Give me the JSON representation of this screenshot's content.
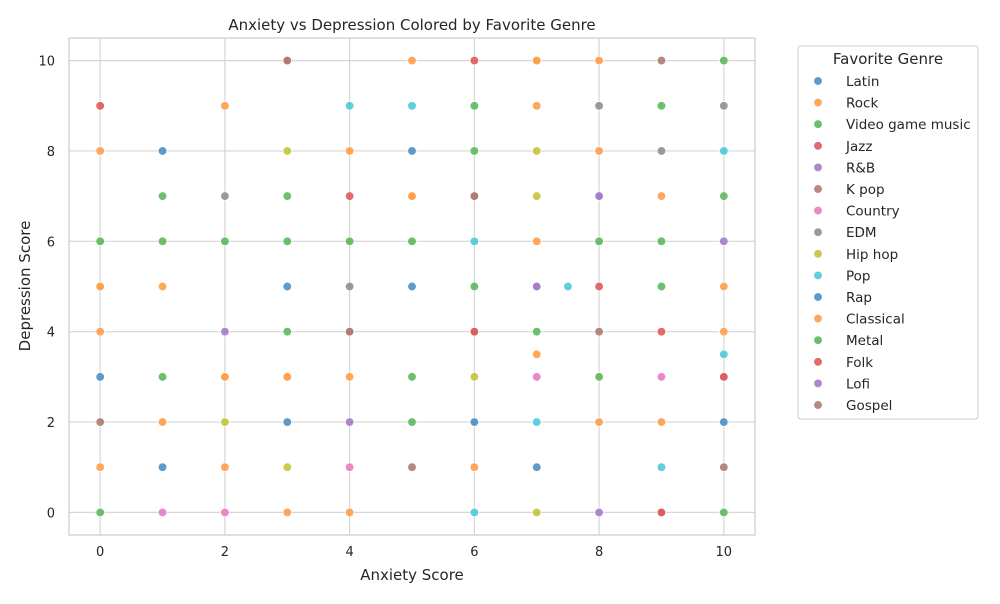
{
  "chart_data": {
    "type": "scatter",
    "title": "Anxiety vs Depression Colored by Favorite Genre",
    "xlabel": "Anxiety Score",
    "ylabel": "Depression Score",
    "xlim": [
      -0.5,
      10.5
    ],
    "ylim": [
      -0.5,
      10.5
    ],
    "xticks": [
      0,
      2,
      4,
      6,
      8,
      10
    ],
    "yticks": [
      0,
      2,
      4,
      6,
      8,
      10
    ],
    "grid": true,
    "legend_title": "Favorite Genre",
    "legend_position": "outside-right",
    "series": [
      {
        "name": "Latin",
        "color": "#4c8fc4",
        "points": [
          [
            0,
            3
          ],
          [
            1,
            8
          ],
          [
            1,
            1
          ],
          [
            5,
            8
          ]
        ]
      },
      {
        "name": "Rock",
        "color": "#ff9e4a",
        "points": [
          [
            0,
            8
          ],
          [
            0,
            5
          ],
          [
            0,
            4
          ],
          [
            0,
            1
          ],
          [
            1,
            5
          ],
          [
            1,
            2
          ],
          [
            2,
            9
          ],
          [
            2,
            3
          ],
          [
            2,
            1
          ],
          [
            3,
            3
          ],
          [
            3,
            0
          ],
          [
            4,
            8
          ],
          [
            4,
            3
          ],
          [
            4,
            0
          ],
          [
            5,
            10
          ],
          [
            5,
            7
          ],
          [
            6,
            1
          ],
          [
            7,
            10
          ],
          [
            7,
            9
          ],
          [
            7,
            6
          ],
          [
            7,
            3.5
          ],
          [
            8,
            10
          ],
          [
            8,
            2
          ],
          [
            9,
            2
          ],
          [
            10,
            5
          ],
          [
            10,
            4
          ]
        ]
      },
      {
        "name": "Video game music",
        "color": "#5cb85c",
        "points": [
          [
            0,
            6
          ],
          [
            0,
            0
          ],
          [
            1,
            7
          ],
          [
            1,
            6
          ],
          [
            1,
            3
          ],
          [
            2,
            6
          ],
          [
            3,
            7
          ],
          [
            3,
            6
          ],
          [
            5,
            6
          ],
          [
            6,
            9
          ],
          [
            6,
            8
          ],
          [
            6,
            5
          ],
          [
            7,
            4
          ],
          [
            8,
            3
          ],
          [
            9,
            9
          ],
          [
            9,
            5
          ],
          [
            10,
            10
          ],
          [
            10,
            0
          ]
        ]
      },
      {
        "name": "Jazz",
        "color": "#e05a5a",
        "points": [
          [
            0,
            9
          ],
          [
            4,
            7
          ],
          [
            6,
            10
          ],
          [
            8,
            5
          ],
          [
            9,
            4
          ]
        ]
      },
      {
        "name": "R&B",
        "color": "#a67cc9",
        "points": [
          [
            2,
            4
          ],
          [
            4,
            2
          ],
          [
            7,
            5
          ],
          [
            8,
            7
          ],
          [
            8,
            0
          ],
          [
            10,
            6
          ]
        ]
      },
      {
        "name": "K pop",
        "color": "#b07a72",
        "points": [
          [
            0,
            2
          ],
          [
            3,
            10
          ],
          [
            4,
            4
          ],
          [
            5,
            1
          ],
          [
            6,
            7
          ],
          [
            6,
            4
          ],
          [
            8,
            4
          ],
          [
            9,
            10
          ],
          [
            9,
            0
          ],
          [
            10,
            3
          ],
          [
            10,
            1
          ]
        ]
      },
      {
        "name": "Country",
        "color": "#e97bc4",
        "points": [
          [
            1,
            0
          ],
          [
            2,
            0
          ],
          [
            4,
            1
          ],
          [
            7,
            3
          ],
          [
            9,
            3
          ]
        ]
      },
      {
        "name": "EDM",
        "color": "#8f8f8f",
        "points": [
          [
            2,
            7
          ],
          [
            4,
            5
          ],
          [
            8,
            9
          ],
          [
            9,
            8
          ],
          [
            10,
            9
          ]
        ]
      },
      {
        "name": "Hip hop",
        "color": "#c4c43c",
        "points": [
          [
            2,
            2
          ],
          [
            3,
            8
          ],
          [
            3,
            1
          ],
          [
            6,
            3
          ],
          [
            7,
            8
          ],
          [
            7,
            7
          ],
          [
            7,
            0
          ]
        ]
      },
      {
        "name": "Pop",
        "color": "#4fc9d9",
        "points": [
          [
            4,
            9
          ],
          [
            5,
            9
          ],
          [
            6,
            6
          ],
          [
            6,
            0
          ],
          [
            7,
            2
          ],
          [
            7.5,
            5
          ],
          [
            9,
            1
          ],
          [
            10,
            8
          ],
          [
            10,
            3.5
          ]
        ]
      },
      {
        "name": "Rap",
        "color": "#4c8fc4",
        "points": [
          [
            3,
            5
          ],
          [
            3,
            2
          ],
          [
            5,
            5
          ],
          [
            6,
            2
          ],
          [
            7,
            1
          ],
          [
            10,
            2
          ]
        ]
      },
      {
        "name": "Classical",
        "color": "#ff9e4a",
        "points": [
          [
            0,
            5
          ],
          [
            2,
            3
          ],
          [
            3,
            3
          ],
          [
            5,
            7
          ],
          [
            7,
            10
          ],
          [
            8,
            8
          ],
          [
            9,
            7
          ]
        ]
      },
      {
        "name": "Metal",
        "color": "#5cb85c",
        "points": [
          [
            3,
            4
          ],
          [
            4,
            6
          ],
          [
            5,
            3
          ],
          [
            5,
            2
          ],
          [
            8,
            6
          ],
          [
            9,
            6
          ],
          [
            10,
            7
          ]
        ]
      },
      {
        "name": "Folk",
        "color": "#e05a5a",
        "points": [
          [
            6,
            4
          ],
          [
            9,
            0
          ],
          [
            10,
            3
          ]
        ]
      },
      {
        "name": "Lofi",
        "color": "#a67cc9",
        "points": [
          [
            7,
            5
          ],
          [
            8,
            7
          ]
        ]
      },
      {
        "name": "Gospel",
        "color": "#b07a72",
        "points": [
          [
            3,
            10
          ],
          [
            4,
            4
          ],
          [
            6,
            7
          ]
        ]
      }
    ]
  }
}
